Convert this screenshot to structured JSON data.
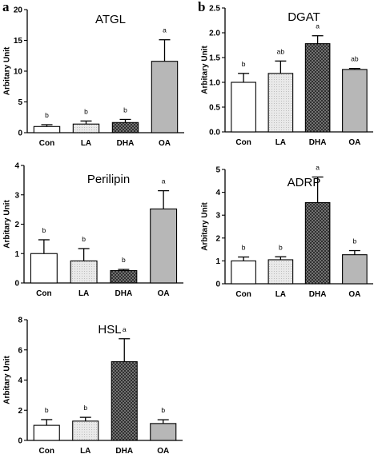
{
  "panel_letters": {
    "a": "a",
    "b": "b"
  },
  "chart_data": [
    {
      "type": "bar",
      "title": "ATGL",
      "ylabel": "Arbitary Unit",
      "categories": [
        "Con",
        "LA",
        "DHA",
        "OA"
      ],
      "values": [
        1.0,
        1.4,
        1.65,
        11.6
      ],
      "errors": [
        0.3,
        0.5,
        0.5,
        3.5
      ],
      "letters": [
        "b",
        "b",
        "b",
        "a"
      ],
      "ylim": [
        0,
        20
      ],
      "yticks": [
        "0",
        "5",
        "10",
        "15",
        "20"
      ],
      "yticks_values": [
        0,
        5,
        10,
        15,
        20
      ],
      "fills": [
        "white",
        "light",
        "hatch",
        "gray"
      ]
    },
    {
      "type": "bar",
      "title": "DGAT",
      "ylabel": "Arbitary Unit",
      "categories": [
        "Con",
        "LA",
        "DHA",
        "OA"
      ],
      "values": [
        1.0,
        1.18,
        1.78,
        1.26
      ],
      "errors": [
        0.18,
        0.25,
        0.16,
        0.02
      ],
      "letters": [
        "b",
        "ab",
        "a",
        "ab"
      ],
      "ylim": [
        0,
        2.5
      ],
      "yticks": [
        "0.0",
        "0.5",
        "1.0",
        "1.5",
        "2.0",
        "2.5"
      ],
      "yticks_values": [
        0,
        0.5,
        1.0,
        1.5,
        2.0,
        2.5
      ],
      "fills": [
        "white",
        "light",
        "hatch",
        "gray"
      ]
    },
    {
      "type": "bar",
      "title": "Perilipin",
      "ylabel": "Arbitary Unit",
      "categories": [
        "Con",
        "LA",
        "DHA",
        "OA"
      ],
      "values": [
        1.0,
        0.75,
        0.42,
        2.52
      ],
      "errors": [
        0.47,
        0.42,
        0.04,
        0.62
      ],
      "letters": [
        "b",
        "b",
        "b",
        "a"
      ],
      "ylim": [
        0,
        4
      ],
      "yticks": [
        "0",
        "1",
        "2",
        "3",
        "4"
      ],
      "yticks_values": [
        0,
        1,
        2,
        3,
        4
      ],
      "fills": [
        "white",
        "light",
        "hatch",
        "gray"
      ]
    },
    {
      "type": "bar",
      "title": "ADRP",
      "ylabel": "Arbitary Unit",
      "categories": [
        "Con",
        "LA",
        "DHA",
        "OA"
      ],
      "values": [
        1.0,
        1.05,
        3.55,
        1.27
      ],
      "errors": [
        0.17,
        0.13,
        1.12,
        0.18
      ],
      "letters": [
        "b",
        "b",
        "a",
        "b"
      ],
      "ylim": [
        0,
        5
      ],
      "yticks": [
        "0",
        "1",
        "2",
        "3",
        "4",
        "5"
      ],
      "yticks_values": [
        0,
        1,
        2,
        3,
        4,
        5
      ],
      "fills": [
        "white",
        "light",
        "hatch",
        "gray"
      ]
    },
    {
      "type": "bar",
      "title": "HSL",
      "ylabel": "Arbitary Unit",
      "categories": [
        "Con",
        "LA",
        "DHA",
        "OA"
      ],
      "values": [
        1.0,
        1.28,
        5.22,
        1.12
      ],
      "errors": [
        0.38,
        0.25,
        1.52,
        0.25
      ],
      "letters": [
        "b",
        "b",
        "a",
        "b"
      ],
      "ylim": [
        0,
        8
      ],
      "yticks": [
        "0",
        "2",
        "4",
        "6",
        "8"
      ],
      "yticks_values": [
        0,
        2,
        4,
        6,
        8
      ],
      "fills": [
        "white",
        "light",
        "hatch",
        "gray"
      ]
    }
  ]
}
